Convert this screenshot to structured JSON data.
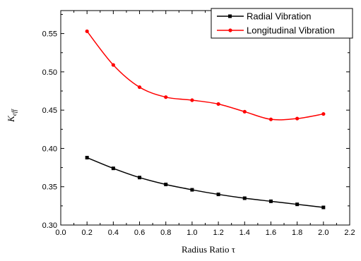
{
  "chart_data": {
    "type": "line",
    "x": [
      0.2,
      0.4,
      0.6,
      0.8,
      1.0,
      1.2,
      1.4,
      1.6,
      1.8,
      2.0
    ],
    "series": [
      {
        "name": "Radial Vibration",
        "color": "#000000",
        "marker": "square",
        "values": [
          0.388,
          0.374,
          0.362,
          0.353,
          0.346,
          0.34,
          0.335,
          0.331,
          0.327,
          0.323
        ]
      },
      {
        "name": "Longitudinal Vibration",
        "color": "#ff0000",
        "marker": "circle",
        "values": [
          0.553,
          0.509,
          0.48,
          0.467,
          0.463,
          0.458,
          0.448,
          0.438,
          0.439,
          0.445
        ]
      }
    ],
    "xlabel": "Radius Ratio τ",
    "ylabel_main": "K",
    "ylabel_sub": "eff",
    "xlim": [
      0.0,
      2.2
    ],
    "ylim": [
      0.3,
      0.58
    ],
    "xticks": [
      "0.0",
      "0.2",
      "0.4",
      "0.6",
      "0.8",
      "1.0",
      "1.2",
      "1.4",
      "1.6",
      "1.8",
      "2.0",
      "2.2"
    ],
    "yticks": [
      "0.30",
      "0.35",
      "0.40",
      "0.45",
      "0.50",
      "0.55"
    ],
    "legend_position": "top-right",
    "grid": false
  }
}
